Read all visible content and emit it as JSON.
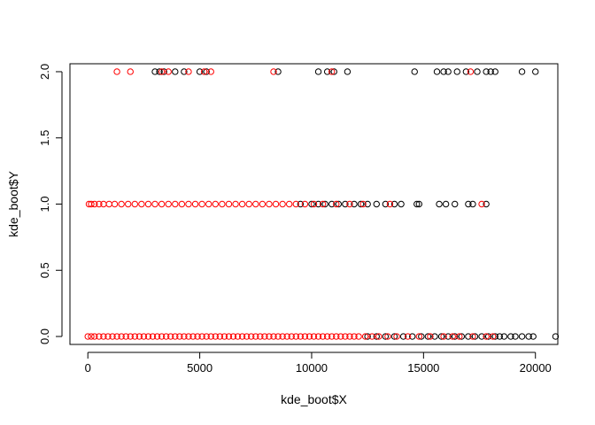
{
  "chart_data": {
    "type": "scatter",
    "title": "",
    "xlabel": "kde_boot$X",
    "ylabel": "kde_boot$Y",
    "xlim": [
      -800,
      21000
    ],
    "ylim": [
      -0.06,
      2.06
    ],
    "x_ticks": [
      0,
      5000,
      10000,
      15000,
      20000
    ],
    "x_tick_labels": [
      "0",
      "5000",
      "10000",
      "15000",
      "20000"
    ],
    "y_ticks": [
      0.0,
      0.5,
      1.0,
      1.5,
      2.0
    ],
    "y_tick_labels": [
      "0.0",
      "0.5",
      "1.0",
      "1.5",
      "2.0"
    ],
    "grid": false,
    "legend": "none",
    "marker": "open-circle",
    "series": [
      {
        "color": "#000000",
        "points": [
          [
            3000,
            2
          ],
          [
            3200,
            2
          ],
          [
            3400,
            2
          ],
          [
            3900,
            2
          ],
          [
            4300,
            2
          ],
          [
            5000,
            2
          ],
          [
            5300,
            2
          ],
          [
            8500,
            2
          ],
          [
            10300,
            2
          ],
          [
            10700,
            2
          ],
          [
            11000,
            2
          ],
          [
            11600,
            2
          ],
          [
            14600,
            2
          ],
          [
            15600,
            2
          ],
          [
            15900,
            2
          ],
          [
            16100,
            2
          ],
          [
            16500,
            2
          ],
          [
            16900,
            2
          ],
          [
            17400,
            2
          ],
          [
            17800,
            2
          ],
          [
            18000,
            2
          ],
          [
            18200,
            2
          ],
          [
            19400,
            2
          ],
          [
            20000,
            2
          ],
          [
            9500,
            1
          ],
          [
            10000,
            1
          ],
          [
            10300,
            1
          ],
          [
            10600,
            1
          ],
          [
            10900,
            1
          ],
          [
            11200,
            1
          ],
          [
            11500,
            1
          ],
          [
            11900,
            1
          ],
          [
            12200,
            1
          ],
          [
            12500,
            1
          ],
          [
            12900,
            1
          ],
          [
            13300,
            1
          ],
          [
            13700,
            1
          ],
          [
            14000,
            1
          ],
          [
            14700,
            1
          ],
          [
            14800,
            1
          ],
          [
            15700,
            1
          ],
          [
            16000,
            1
          ],
          [
            16400,
            1
          ],
          [
            17000,
            1
          ],
          [
            17200,
            1
          ],
          [
            17800,
            1
          ],
          [
            12500,
            0
          ],
          [
            12900,
            0
          ],
          [
            13300,
            0
          ],
          [
            13700,
            0
          ],
          [
            14100,
            0
          ],
          [
            14500,
            0
          ],
          [
            14900,
            0
          ],
          [
            15200,
            0
          ],
          [
            15500,
            0
          ],
          [
            15800,
            0
          ],
          [
            16100,
            0
          ],
          [
            16400,
            0
          ],
          [
            16700,
            0
          ],
          [
            17000,
            0
          ],
          [
            17300,
            0
          ],
          [
            17600,
            0
          ],
          [
            17900,
            0
          ],
          [
            18200,
            0
          ],
          [
            18400,
            0
          ],
          [
            18600,
            0
          ],
          [
            18900,
            0
          ],
          [
            19100,
            0
          ],
          [
            19400,
            0
          ],
          [
            19700,
            0
          ],
          [
            19900,
            0
          ],
          [
            20900,
            0
          ]
        ]
      },
      {
        "color": "#ff0000",
        "points": [
          [
            1300,
            2
          ],
          [
            1900,
            2
          ],
          [
            3300,
            2
          ],
          [
            3600,
            2
          ],
          [
            4500,
            2
          ],
          [
            5200,
            2
          ],
          [
            5500,
            2
          ],
          [
            8300,
            2
          ],
          [
            10900,
            2
          ],
          [
            17100,
            2
          ],
          [
            50,
            1
          ],
          [
            150,
            1
          ],
          [
            300,
            1
          ],
          [
            500,
            1
          ],
          [
            700,
            1
          ],
          [
            950,
            1
          ],
          [
            1200,
            1
          ],
          [
            1500,
            1
          ],
          [
            1800,
            1
          ],
          [
            2100,
            1
          ],
          [
            2400,
            1
          ],
          [
            2700,
            1
          ],
          [
            3000,
            1
          ],
          [
            3300,
            1
          ],
          [
            3600,
            1
          ],
          [
            3900,
            1
          ],
          [
            4200,
            1
          ],
          [
            4500,
            1
          ],
          [
            4800,
            1
          ],
          [
            5100,
            1
          ],
          [
            5400,
            1
          ],
          [
            5700,
            1
          ],
          [
            6000,
            1
          ],
          [
            6300,
            1
          ],
          [
            6600,
            1
          ],
          [
            6900,
            1
          ],
          [
            7200,
            1
          ],
          [
            7500,
            1
          ],
          [
            7800,
            1
          ],
          [
            8100,
            1
          ],
          [
            8400,
            1
          ],
          [
            8700,
            1
          ],
          [
            9000,
            1
          ],
          [
            9300,
            1
          ],
          [
            9700,
            1
          ],
          [
            10100,
            1
          ],
          [
            10500,
            1
          ],
          [
            11100,
            1
          ],
          [
            11700,
            1
          ],
          [
            12300,
            1
          ],
          [
            13500,
            1
          ],
          [
            17600,
            1
          ],
          [
            0,
            0
          ],
          [
            150,
            0
          ],
          [
            300,
            0
          ],
          [
            500,
            0
          ],
          [
            700,
            0
          ],
          [
            900,
            0
          ],
          [
            1100,
            0
          ],
          [
            1300,
            0
          ],
          [
            1500,
            0
          ],
          [
            1700,
            0
          ],
          [
            1900,
            0
          ],
          [
            2100,
            0
          ],
          [
            2300,
            0
          ],
          [
            2500,
            0
          ],
          [
            2700,
            0
          ],
          [
            2900,
            0
          ],
          [
            3100,
            0
          ],
          [
            3300,
            0
          ],
          [
            3500,
            0
          ],
          [
            3700,
            0
          ],
          [
            3900,
            0
          ],
          [
            4100,
            0
          ],
          [
            4300,
            0
          ],
          [
            4500,
            0
          ],
          [
            4700,
            0
          ],
          [
            4900,
            0
          ],
          [
            5100,
            0
          ],
          [
            5300,
            0
          ],
          [
            5500,
            0
          ],
          [
            5700,
            0
          ],
          [
            5900,
            0
          ],
          [
            6100,
            0
          ],
          [
            6300,
            0
          ],
          [
            6500,
            0
          ],
          [
            6700,
            0
          ],
          [
            6900,
            0
          ],
          [
            7100,
            0
          ],
          [
            7300,
            0
          ],
          [
            7500,
            0
          ],
          [
            7700,
            0
          ],
          [
            7900,
            0
          ],
          [
            8100,
            0
          ],
          [
            8300,
            0
          ],
          [
            8500,
            0
          ],
          [
            8700,
            0
          ],
          [
            8900,
            0
          ],
          [
            9100,
            0
          ],
          [
            9300,
            0
          ],
          [
            9500,
            0
          ],
          [
            9700,
            0
          ],
          [
            9900,
            0
          ],
          [
            10100,
            0
          ],
          [
            10300,
            0
          ],
          [
            10500,
            0
          ],
          [
            10700,
            0
          ],
          [
            10900,
            0
          ],
          [
            11100,
            0
          ],
          [
            11300,
            0
          ],
          [
            11500,
            0
          ],
          [
            11700,
            0
          ],
          [
            11900,
            0
          ],
          [
            12100,
            0
          ],
          [
            12400,
            0
          ],
          [
            12700,
            0
          ],
          [
            13000,
            0
          ],
          [
            13400,
            0
          ],
          [
            13800,
            0
          ],
          [
            14300,
            0
          ],
          [
            14800,
            0
          ],
          [
            15300,
            0
          ],
          [
            15900,
            0
          ],
          [
            16300,
            0
          ],
          [
            16600,
            0
          ],
          [
            17200,
            0
          ],
          [
            17800,
            0
          ],
          [
            18100,
            0
          ]
        ]
      }
    ]
  }
}
